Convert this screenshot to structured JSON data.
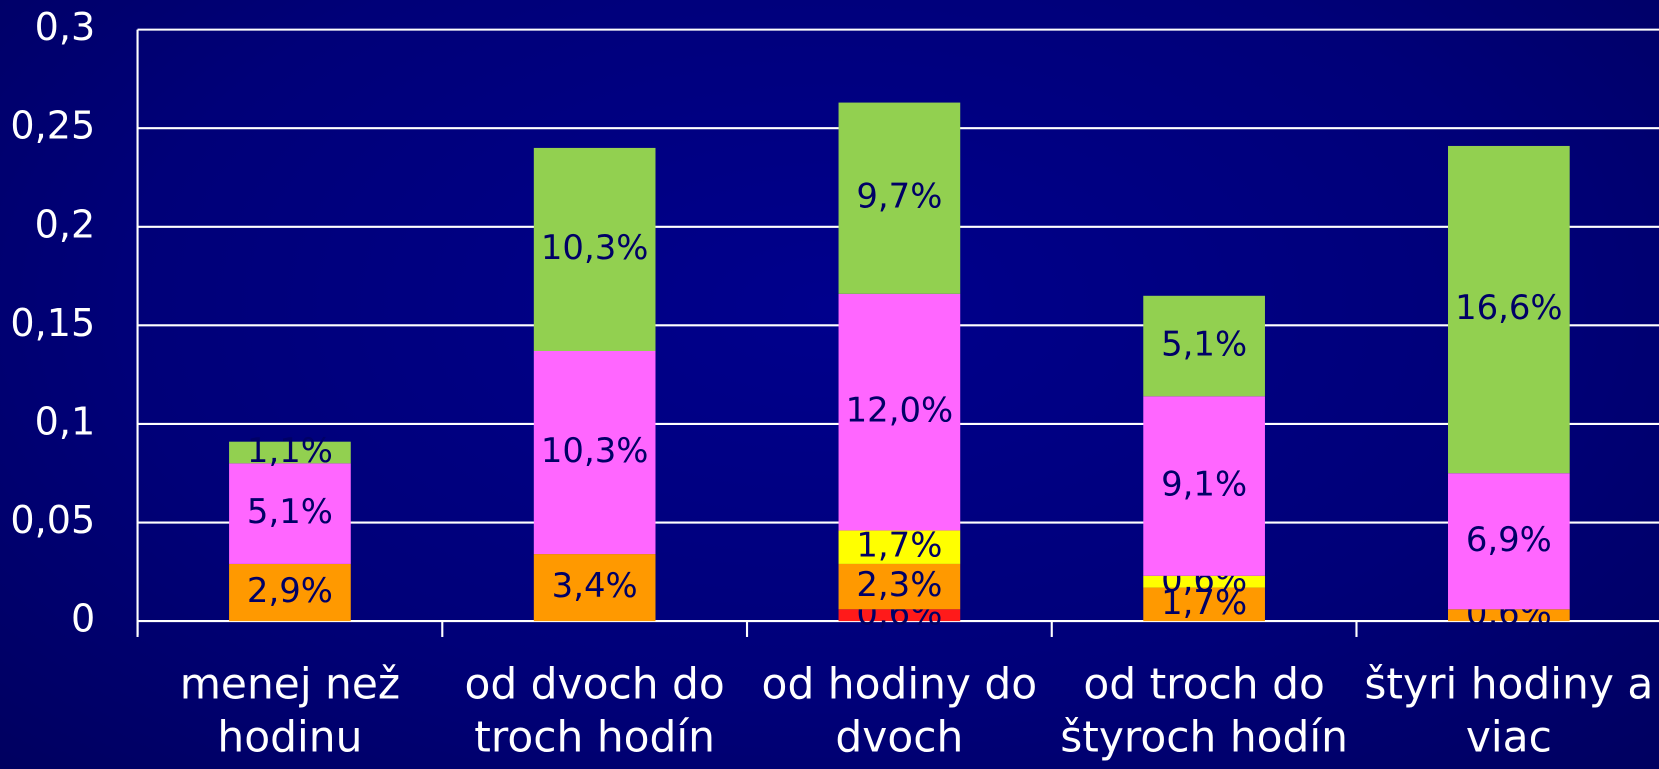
{
  "chart_data": {
    "type": "bar",
    "stacked": true,
    "categories": [
      "menej než hodinu",
      "od dvoch do troch hodín",
      "od hodiny do dvoch",
      "od troch do štyroch hodín",
      "štyri hodiny a viac"
    ],
    "series": [
      {
        "color": "#ff1a1a",
        "values": [
          null,
          null,
          0.006,
          null,
          null
        ],
        "value_labels": [
          null,
          null,
          "0,6%",
          null,
          null
        ]
      },
      {
        "color": "#ff9900",
        "values": [
          0.029,
          0.034,
          0.023,
          0.017,
          0.006
        ],
        "value_labels": [
          "2,9%",
          "3,4%",
          "2,3%",
          "1,7%",
          "0,6%"
        ]
      },
      {
        "color": "#ffff00",
        "values": [
          null,
          null,
          0.017,
          0.006,
          null
        ],
        "value_labels": [
          null,
          null,
          "1,7%",
          "0,6%",
          null
        ]
      },
      {
        "color": "#ff66ff",
        "values": [
          0.051,
          0.103,
          0.12,
          0.091,
          0.069
        ],
        "value_labels": [
          "5,1%",
          "10,3%",
          "12,0%",
          "9,1%",
          "6,9%"
        ]
      },
      {
        "color": "#92d050",
        "values": [
          0.011,
          0.103,
          0.097,
          0.051,
          0.166
        ],
        "value_labels": [
          "1,1%",
          "10,3%",
          "9,7%",
          "5,1%",
          "16,6%"
        ]
      }
    ],
    "ylim": [
      0,
      0.3
    ],
    "yticks": [
      0,
      {
        "value": 0.05,
        "label": "0,05"
      },
      {
        "value": 0.1,
        "label": "0,1"
      },
      {
        "value": 0.15,
        "label": "0,15"
      },
      {
        "value": 0.2,
        "label": "0,2"
      },
      {
        "value": 0.25,
        "label": "0,25"
      },
      {
        "value": 0.3,
        "label": "0,3"
      }
    ],
    "grid": true
  }
}
